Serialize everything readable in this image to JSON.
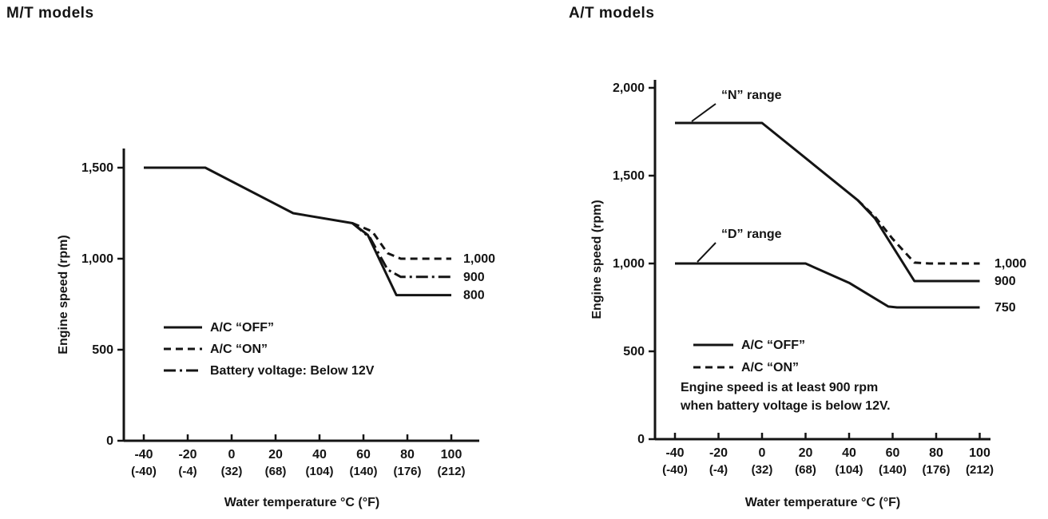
{
  "colors": {
    "ink": "#141414",
    "background": "#ffffff"
  },
  "chart_data": [
    {
      "id": "mt-models",
      "type": "line",
      "title": "M/T models",
      "xlabel": "Water temperature °C (°F)",
      "ylabel": "Engine speed (rpm)",
      "xlim": [
        -40,
        100
      ],
      "ylim": [
        0,
        1650
      ],
      "grid": false,
      "xticks": {
        "values": [
          -40,
          -20,
          0,
          20,
          40,
          60,
          80,
          100
        ],
        "celsius": [
          "-40",
          "-20",
          "0",
          "20",
          "40",
          "60",
          "80",
          "100"
        ],
        "fahrenheit": [
          "(-40)",
          "(-4)",
          "(32)",
          "(68)",
          "(104)",
          "(140)",
          "(176)",
          "(212)"
        ]
      },
      "yticks": {
        "values": [
          0,
          500,
          1000,
          1500
        ],
        "labels": [
          "0",
          "500",
          "1,000",
          "1,500"
        ]
      },
      "series": [
        {
          "name": "A/C “OFF”",
          "style": "solid",
          "end_label": "800",
          "points": [
            [
              -40,
              1500
            ],
            [
              -12,
              1500
            ],
            [
              28,
              1250
            ],
            [
              55,
              1195
            ],
            [
              62,
              1130
            ],
            [
              75,
              800
            ],
            [
              100,
              800
            ]
          ]
        },
        {
          "name": "A/C “ON”",
          "style": "dashed",
          "end_label": "1,000",
          "points": [
            [
              55,
              1195
            ],
            [
              59,
              1175
            ],
            [
              64,
              1150
            ],
            [
              71,
              1030
            ],
            [
              77,
              1000
            ],
            [
              100,
              1000
            ]
          ]
        },
        {
          "name": "Battery voltage: Below 12V",
          "style": "dashdot",
          "end_label": "900",
          "points": [
            [
              55,
              1195
            ],
            [
              63,
              1115
            ],
            [
              71,
              940
            ],
            [
              77,
              900
            ],
            [
              100,
              900
            ]
          ]
        }
      ],
      "legend": [
        {
          "style": "solid",
          "label": "A/C “OFF”"
        },
        {
          "style": "dashed",
          "label": "A/C “ON”"
        },
        {
          "style": "dashdot",
          "label": "Battery voltage: Below 12V"
        }
      ],
      "annotations": [],
      "note": []
    },
    {
      "id": "at-models",
      "type": "line",
      "title": "A/T models",
      "xlabel": "Water temperature °C (°F)",
      "ylabel": "Engine speed (rpm)",
      "xlim": [
        -40,
        100
      ],
      "ylim": [
        0,
        2050
      ],
      "grid": false,
      "xticks": {
        "values": [
          -40,
          -20,
          0,
          20,
          40,
          60,
          80,
          100
        ],
        "celsius": [
          "-40",
          "-20",
          "0",
          "20",
          "40",
          "60",
          "80",
          "100"
        ],
        "fahrenheit": [
          "(-40)",
          "(-4)",
          "(32)",
          "(68)",
          "(104)",
          "(140)",
          "(176)",
          "(212)"
        ]
      },
      "yticks": {
        "values": [
          0,
          500,
          1000,
          1500,
          2000
        ],
        "labels": [
          "0",
          "500",
          "1,000",
          "1,500",
          "2,000"
        ]
      },
      "series": [
        {
          "name": "“N” range",
          "style": "solid",
          "end_label": "900",
          "points": [
            [
              -40,
              1800
            ],
            [
              0,
              1800
            ],
            [
              44,
              1360
            ],
            [
              52,
              1255
            ],
            [
              70,
              900
            ],
            [
              100,
              900
            ]
          ]
        },
        {
          "name": "A/C “ON”",
          "style": "dashed",
          "end_label": "1,000",
          "points": [
            [
              44,
              1360
            ],
            [
              52,
              1265
            ],
            [
              60,
              1140
            ],
            [
              70,
              1005
            ],
            [
              77,
              1000
            ],
            [
              100,
              1000
            ]
          ]
        },
        {
          "name": "“D” range",
          "style": "solid",
          "end_label": "750",
          "points": [
            [
              -40,
              1000
            ],
            [
              20,
              1000
            ],
            [
              40,
              890
            ],
            [
              58,
              755
            ],
            [
              62,
              750
            ],
            [
              100,
              750
            ]
          ]
        }
      ],
      "legend": [
        {
          "style": "solid",
          "label": "A/C “OFF”"
        },
        {
          "style": "dashed",
          "label": "A/C “ON”"
        }
      ],
      "annotations": [
        "“N” range",
        "“D” range"
      ],
      "note": [
        "Engine speed is at least 900 rpm",
        "when battery voltage is below 12V."
      ]
    }
  ]
}
